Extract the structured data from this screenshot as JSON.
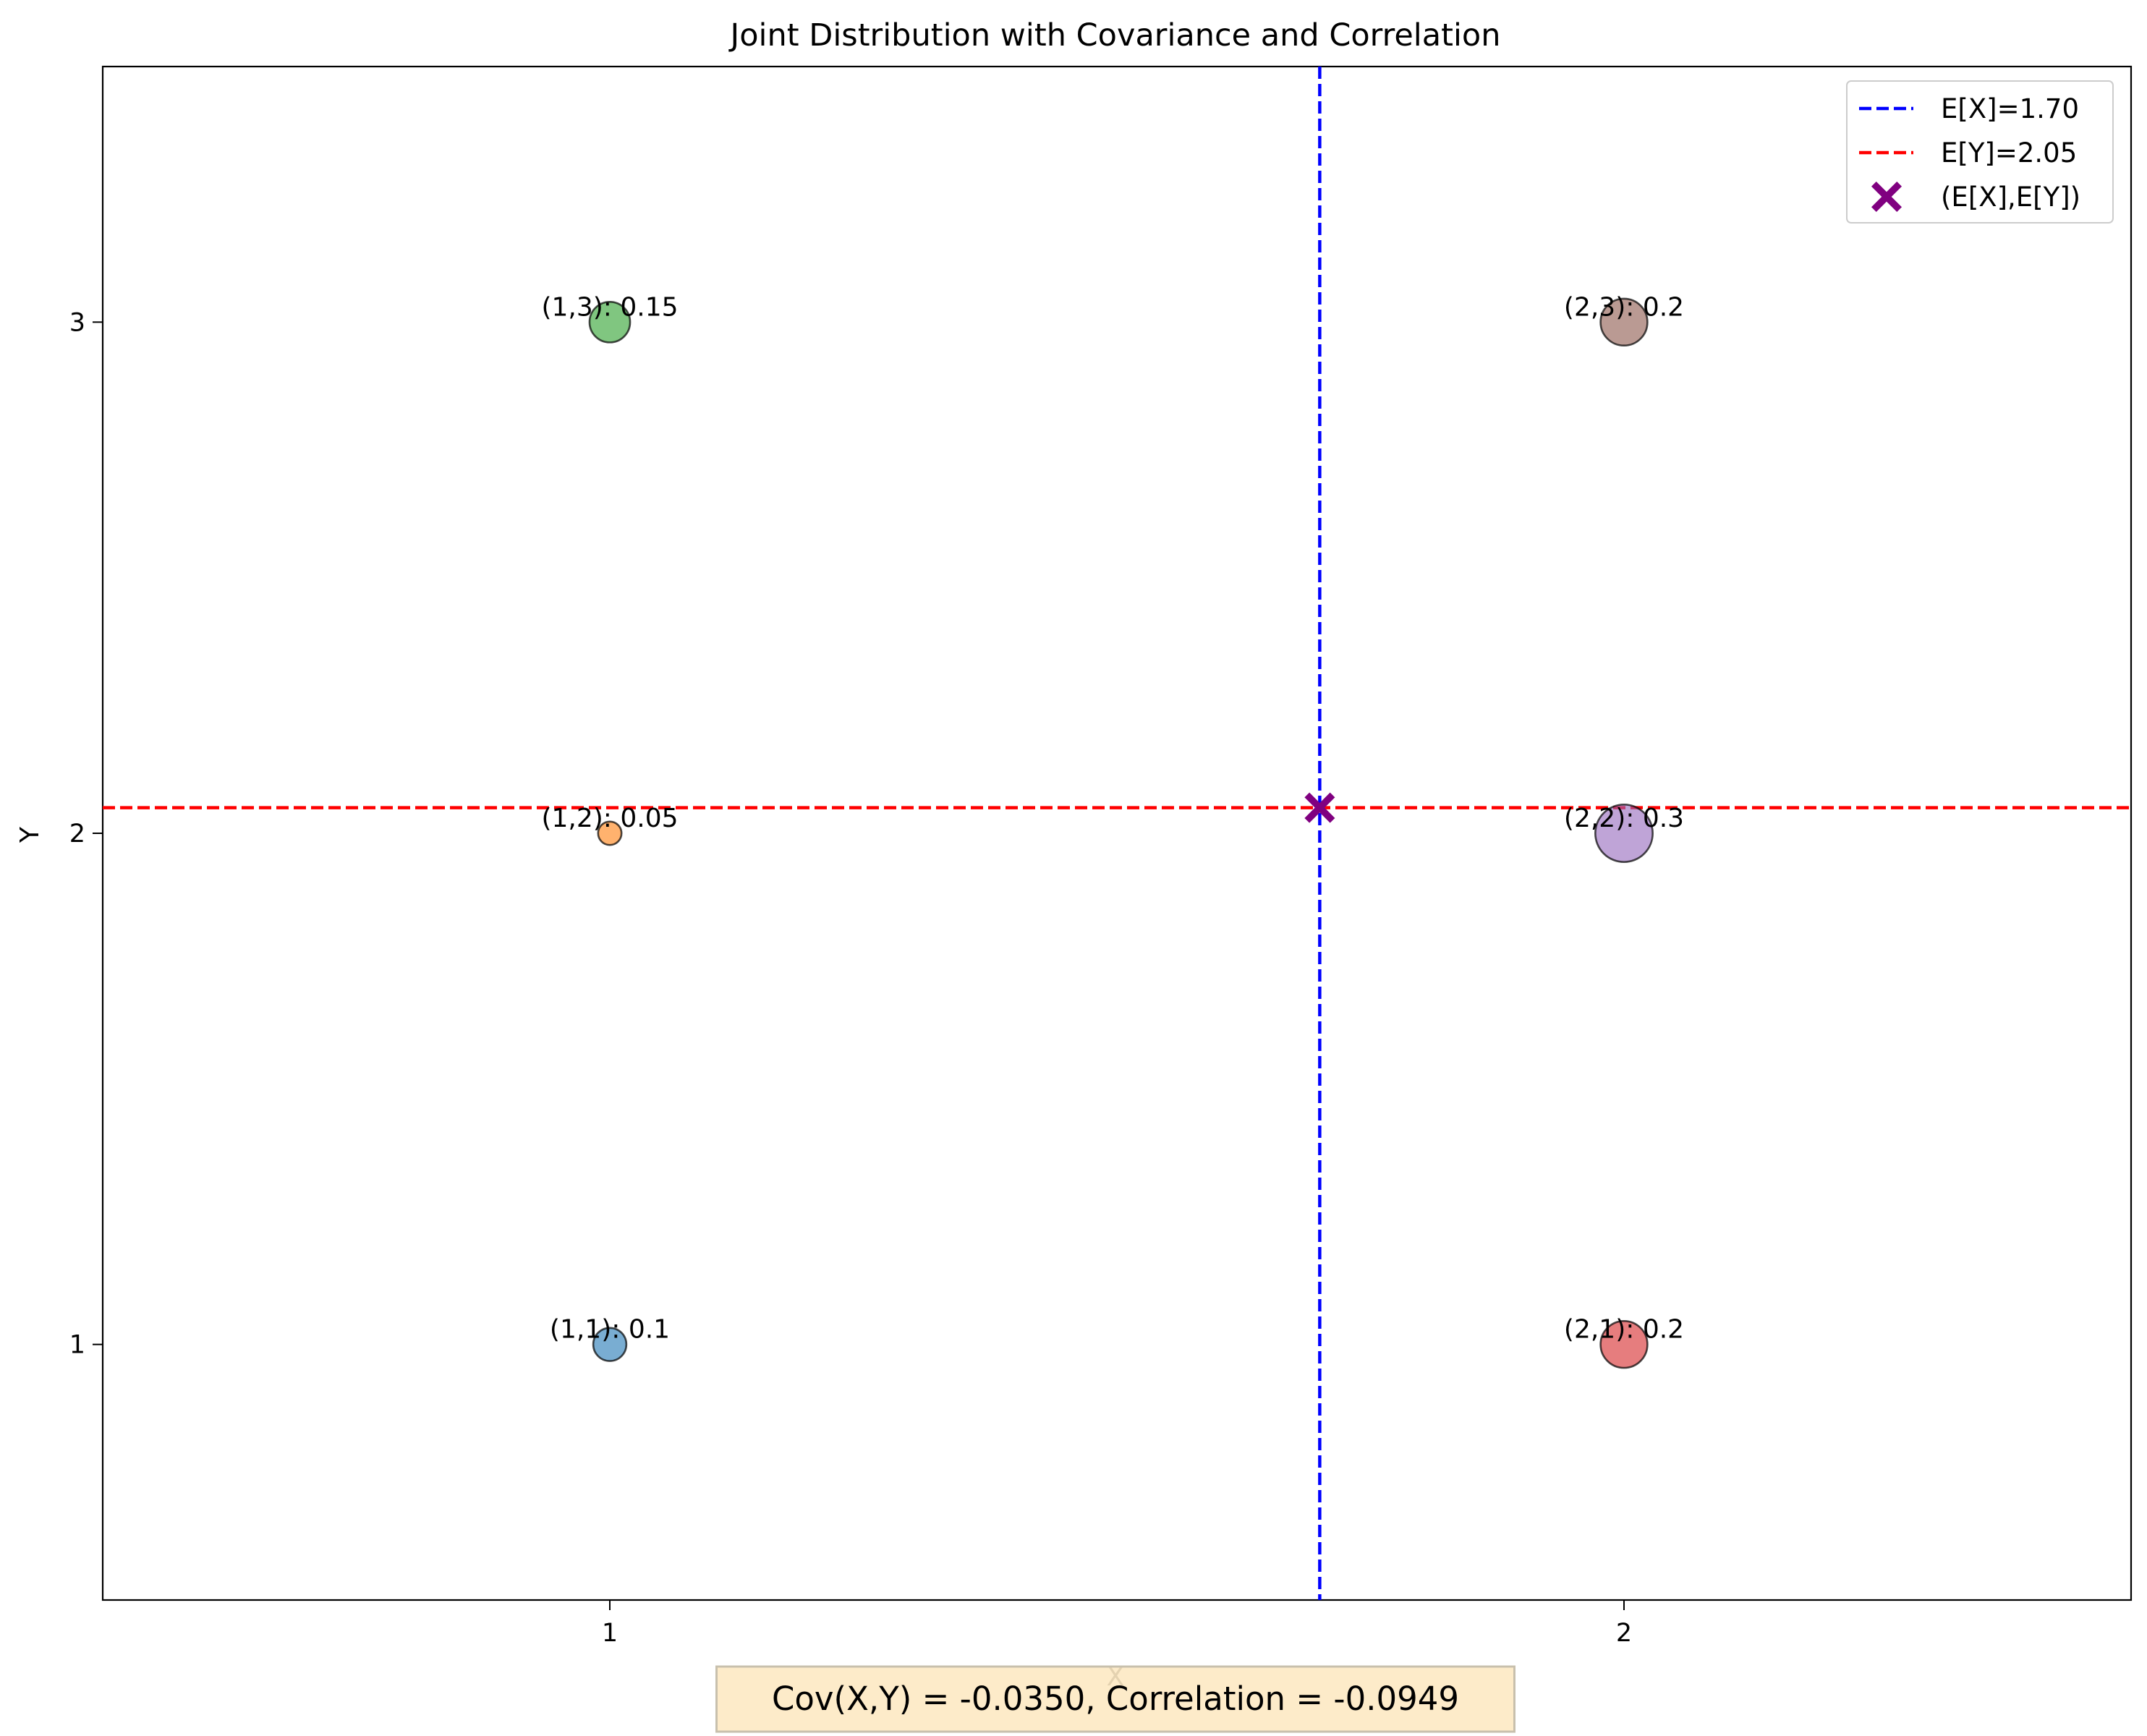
{
  "chart_data": {
    "type": "scatter",
    "title": "Joint Distribution with Covariance and Correlation",
    "xlabel": "X",
    "ylabel": "Y",
    "xlim": [
      0.5,
      2.5
    ],
    "ylim": [
      0.5,
      3.5
    ],
    "xticks": [
      1,
      2
    ],
    "yticks": [
      1,
      2,
      3
    ],
    "grid": false,
    "points": [
      {
        "x": 1,
        "y": 1,
        "p": 0.1,
        "label": "(1,1): 0.1",
        "color": "#1f77b4"
      },
      {
        "x": 1,
        "y": 2,
        "p": 0.05,
        "label": "(1,2): 0.05",
        "color": "#ff7f0e"
      },
      {
        "x": 1,
        "y": 3,
        "p": 0.15,
        "label": "(1,3): 0.15",
        "color": "#2ca02c"
      },
      {
        "x": 2,
        "y": 1,
        "p": 0.2,
        "label": "(2,1): 0.2",
        "color": "#d62728"
      },
      {
        "x": 2,
        "y": 2,
        "p": 0.3,
        "label": "(2,2): 0.3",
        "color": "#9467bd"
      },
      {
        "x": 2,
        "y": 3,
        "p": 0.2,
        "label": "(2,3): 0.2",
        "color": "#8c564b"
      }
    ],
    "expectation": {
      "ex": 1.7,
      "ey": 2.05,
      "ex_label": "E[X]=1.70",
      "ey_label": "E[Y]=2.05",
      "point_label": "(E[X],E[Y])",
      "ex_color": "#0000ff",
      "ey_color": "#ff0000",
      "point_color": "#800080"
    },
    "legend_position": "upper-right",
    "stats_text": "Cov(X,Y) = -0.0350, Correlation = -0.0949",
    "stats_box_color": "#fde9c3"
  }
}
